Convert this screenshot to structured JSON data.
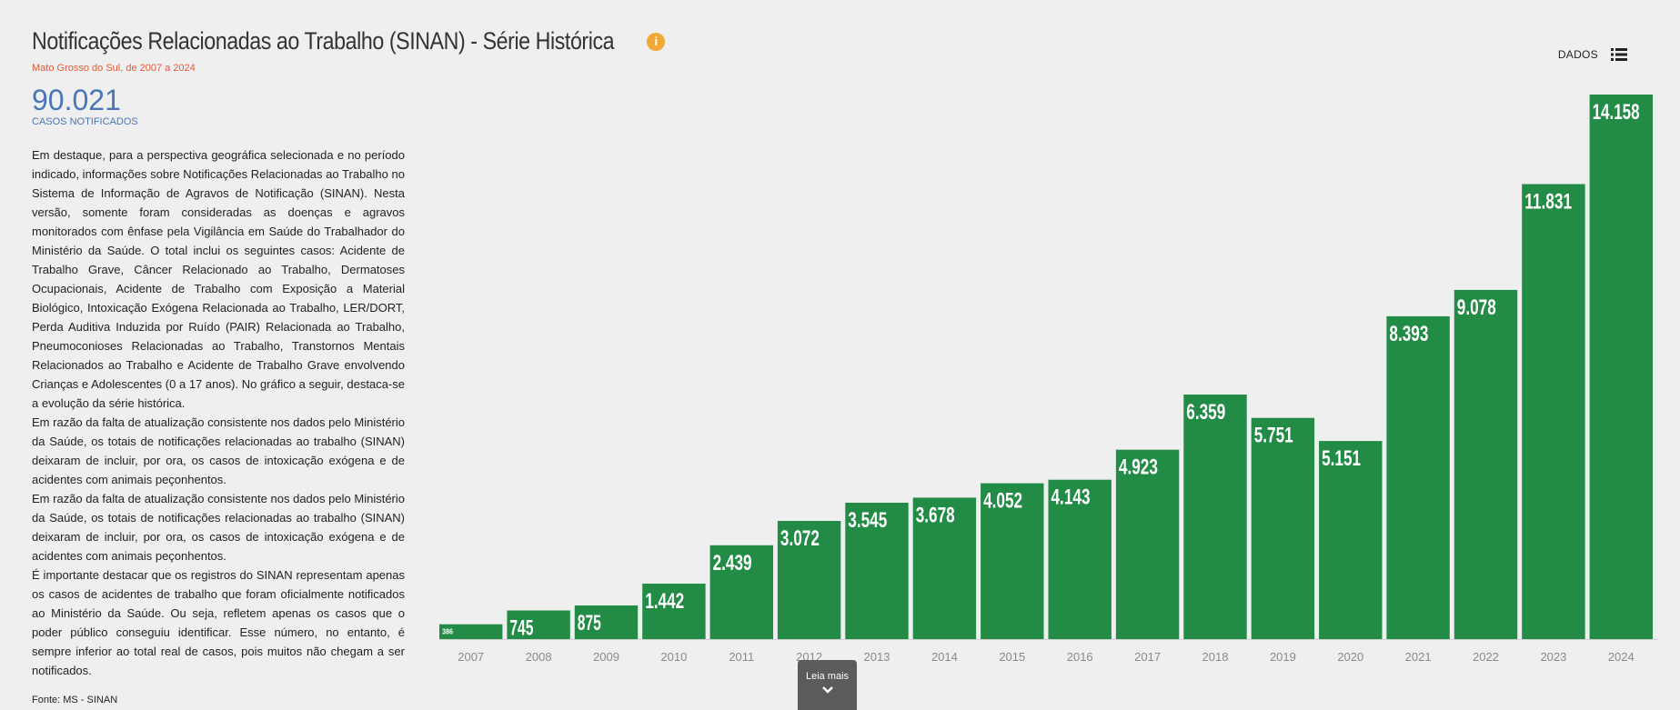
{
  "header": {
    "title": "Notificações Relacionadas ao Trabalho (SINAN) - Série Histórica",
    "subtitle": "Mato Grosso do Sul, de 2007 a 2024",
    "info_icon": "info-icon",
    "data_button_label": "DADOS",
    "data_button_icon": "list-icon"
  },
  "summary": {
    "total": "90.021",
    "total_label": "CASOS NOTIFICADOS"
  },
  "description": [
    "Em destaque, para a perspectiva geográfica selecionada e no período indicado, informações sobre Notificações Relacionadas ao Trabalho no Sistema de Informação de Agravos de Notificação (SINAN). Nesta versão, somente foram consideradas as doenças e agravos monitorados com ênfase pela Vigilância em Saúde do Trabalhador do Ministério da Saúde. O total inclui os seguintes casos: Acidente de Trabalho Grave, Câncer Relacionado ao Trabalho, Dermatoses Ocupacionais, Acidente de Trabalho com Exposição a Material Biológico, Intoxicação Exógena Relacionada ao Trabalho, LER/DORT, Perda Auditiva Induzida por Ruído (PAIR) Relacionada ao Trabalho, Pneumoconioses Relacionadas ao Trabalho, Transtornos Mentais Relacionados ao Trabalho e Acidente de Trabalho Grave envolvendo Crianças e Adolescentes (0 a 17 anos). No gráfico a seguir, destaca-se a evolução da série histórica.",
    "Em razão da falta de atualização consistente nos dados pelo Ministério da Saúde, os totais de notificações relacionadas ao trabalho (SINAN) deixaram de incluir, por ora, os casos de intoxicação exógena e de acidentes com animais peçonhentos.",
    "Em razão da falta de atualização consistente nos dados pelo Ministério da Saúde, os totais de notificações relacionadas ao trabalho (SINAN) deixaram de incluir, por ora, os casos de intoxicação exógena e de acidentes com animais peçonhentos.",
    "É importante destacar que os registros do SINAN representam apenas os casos de acidentes de trabalho que foram oficialmente notificados ao Ministério da Saúde. Ou seja, refletem apenas os casos que o poder público conseguiu identificar. Esse número, no entanto, é sempre inferior ao total real de casos, pois muitos não chegam a ser notificados."
  ],
  "source": "Fonte: MS - SINAN",
  "read_more": {
    "label": "Leia mais",
    "icon": "chevron-down-icon"
  },
  "chart_data": {
    "type": "bar",
    "categories": [
      "2007",
      "2008",
      "2009",
      "2010",
      "2011",
      "2012",
      "2013",
      "2014",
      "2015",
      "2016",
      "2017",
      "2018",
      "2019",
      "2020",
      "2021",
      "2022",
      "2023",
      "2024"
    ],
    "values": [
      386,
      745,
      875,
      1442,
      2439,
      3072,
      3545,
      3678,
      4052,
      4143,
      4923,
      6359,
      5751,
      5151,
      8393,
      9078,
      11831,
      14158
    ],
    "value_labels": [
      "386",
      "745",
      "875",
      "1.442",
      "2.439",
      "3.072",
      "3.545",
      "3.678",
      "4.052",
      "4.143",
      "4.923",
      "6.359",
      "5.751",
      "5.151",
      "8.393",
      "9.078",
      "11.831",
      "14.158"
    ],
    "title": "",
    "xlabel": "",
    "ylabel": "",
    "ylim": [
      0,
      14158
    ],
    "grid": false,
    "legend": "none",
    "bar_color": "#228b45"
  }
}
